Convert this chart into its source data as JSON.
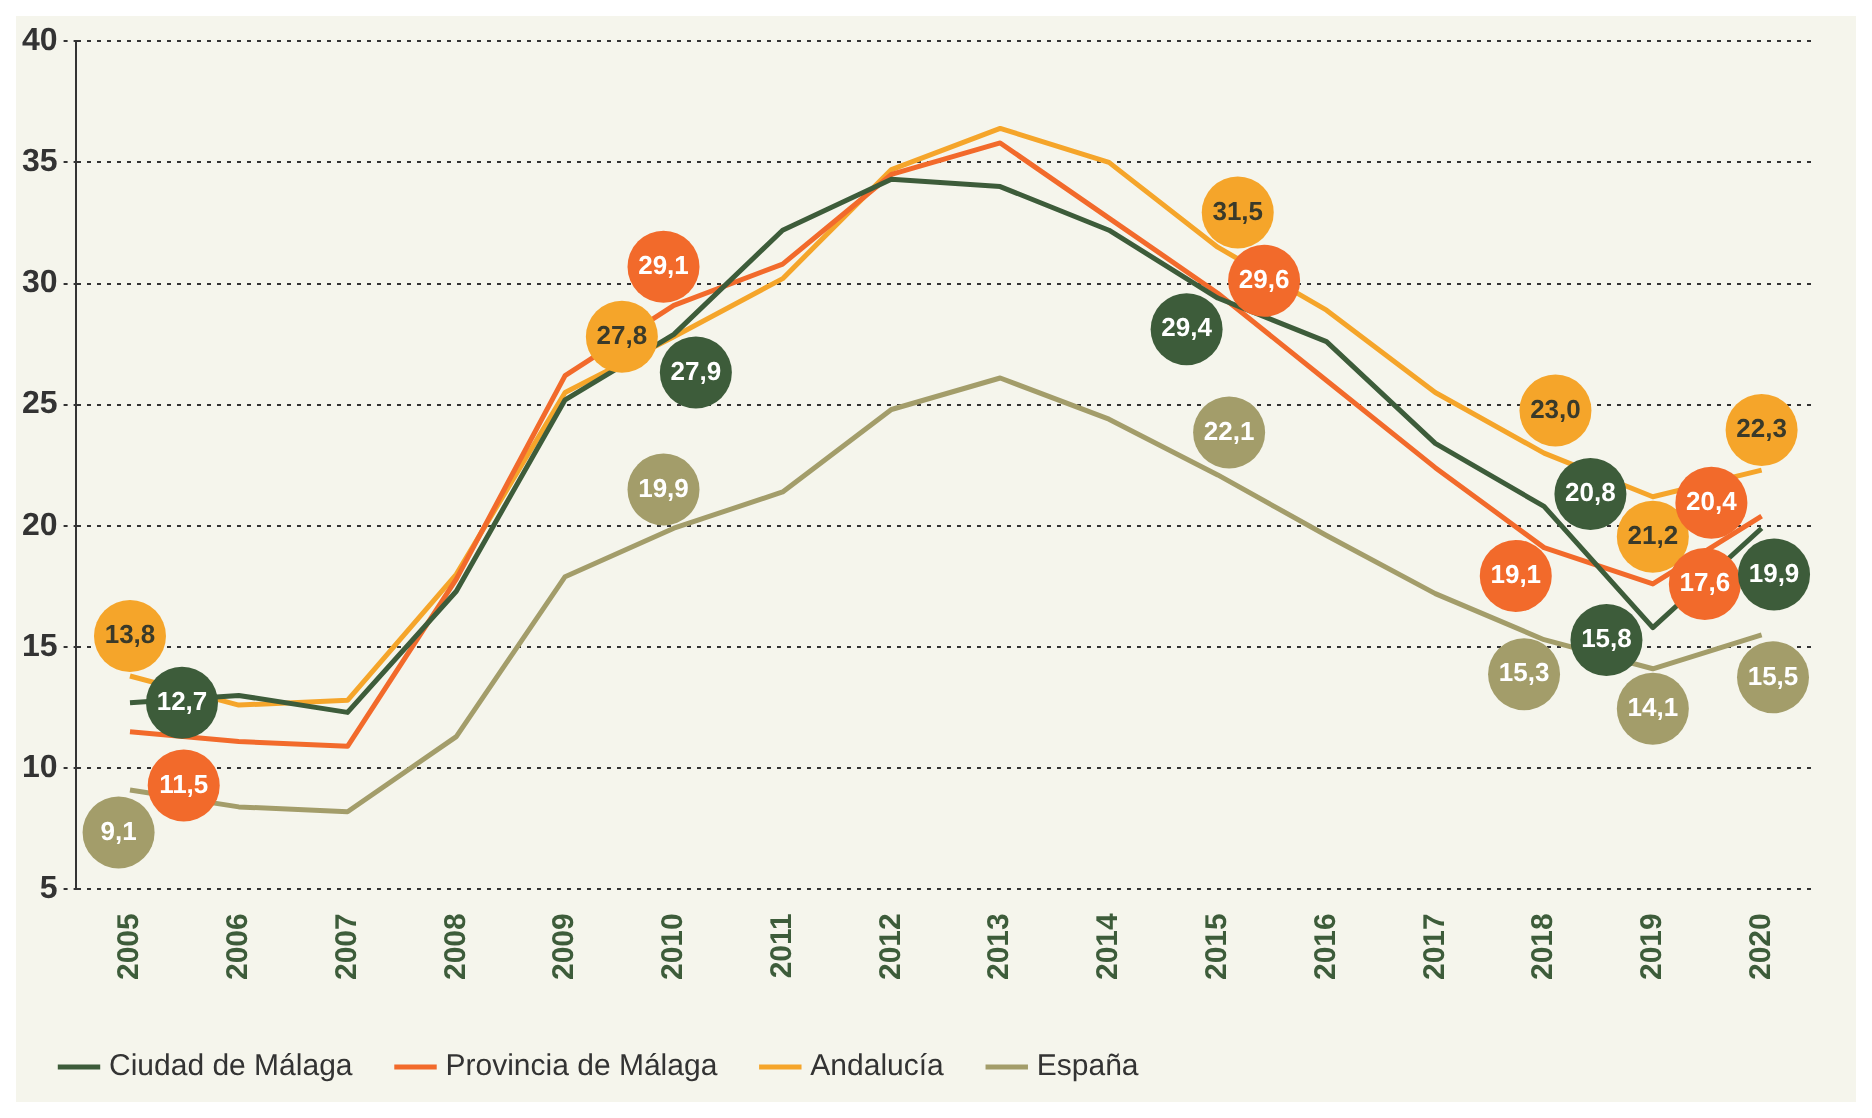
{
  "chart_data": {
    "type": "line",
    "categories": [
      "2005",
      "2006",
      "2007",
      "2008",
      "2009",
      "2010",
      "2011",
      "2012",
      "2013",
      "2014",
      "2015",
      "2016",
      "2017",
      "2018",
      "2019",
      "2020"
    ],
    "series": [
      {
        "name": "Ciudad de Málaga",
        "color": "#3d5c3a",
        "values": [
          12.7,
          13.0,
          12.3,
          17.3,
          25.2,
          27.9,
          32.2,
          34.3,
          34.0,
          32.2,
          29.4,
          27.6,
          23.4,
          20.8,
          15.8,
          19.9
        ],
        "value_labels": [
          "12,7",
          null,
          null,
          null,
          null,
          "27,9",
          null,
          null,
          null,
          null,
          "29,4",
          null,
          null,
          "20,8",
          "15,8",
          "19,9"
        ]
      },
      {
        "name": "Provincia de Málaga",
        "color": "#f26a2b",
        "values": [
          11.5,
          11.1,
          10.9,
          17.8,
          26.2,
          29.1,
          30.8,
          34.5,
          35.8,
          32.7,
          29.6,
          26.0,
          22.4,
          19.1,
          17.6,
          20.4
        ],
        "value_labels": [
          "11,5",
          null,
          null,
          null,
          null,
          "29,1",
          null,
          null,
          null,
          null,
          "29,6",
          null,
          null,
          "19,1",
          "17,6",
          "20,4"
        ]
      },
      {
        "name": "Andalucía",
        "color": "#f5a52a",
        "values": [
          13.8,
          12.6,
          12.8,
          18.0,
          25.5,
          27.8,
          30.2,
          34.7,
          36.4,
          35.0,
          31.5,
          28.9,
          25.5,
          23.0,
          21.2,
          22.3
        ],
        "value_labels": [
          "13,8",
          null,
          null,
          null,
          null,
          "27,8",
          null,
          null,
          null,
          null,
          "31,5",
          null,
          null,
          "23,0",
          "21,2",
          "22,3"
        ]
      },
      {
        "name": "España",
        "color": "#a39d6a",
        "values": [
          9.1,
          8.4,
          8.2,
          11.3,
          17.9,
          19.9,
          21.4,
          24.8,
          26.1,
          24.4,
          22.1,
          19.6,
          17.2,
          15.3,
          14.1,
          15.5
        ],
        "value_labels": [
          "9,1",
          null,
          null,
          null,
          null,
          "19,9",
          null,
          null,
          null,
          null,
          "22,1",
          null,
          null,
          "15,3",
          "14,1",
          "15,5"
        ]
      }
    ],
    "ylim": [
      5,
      40
    ],
    "yticks": [
      5,
      10,
      15,
      20,
      25,
      30,
      35,
      40
    ],
    "grid": "y",
    "legend": "bottom",
    "marker": "none",
    "line_style": "solid"
  }
}
